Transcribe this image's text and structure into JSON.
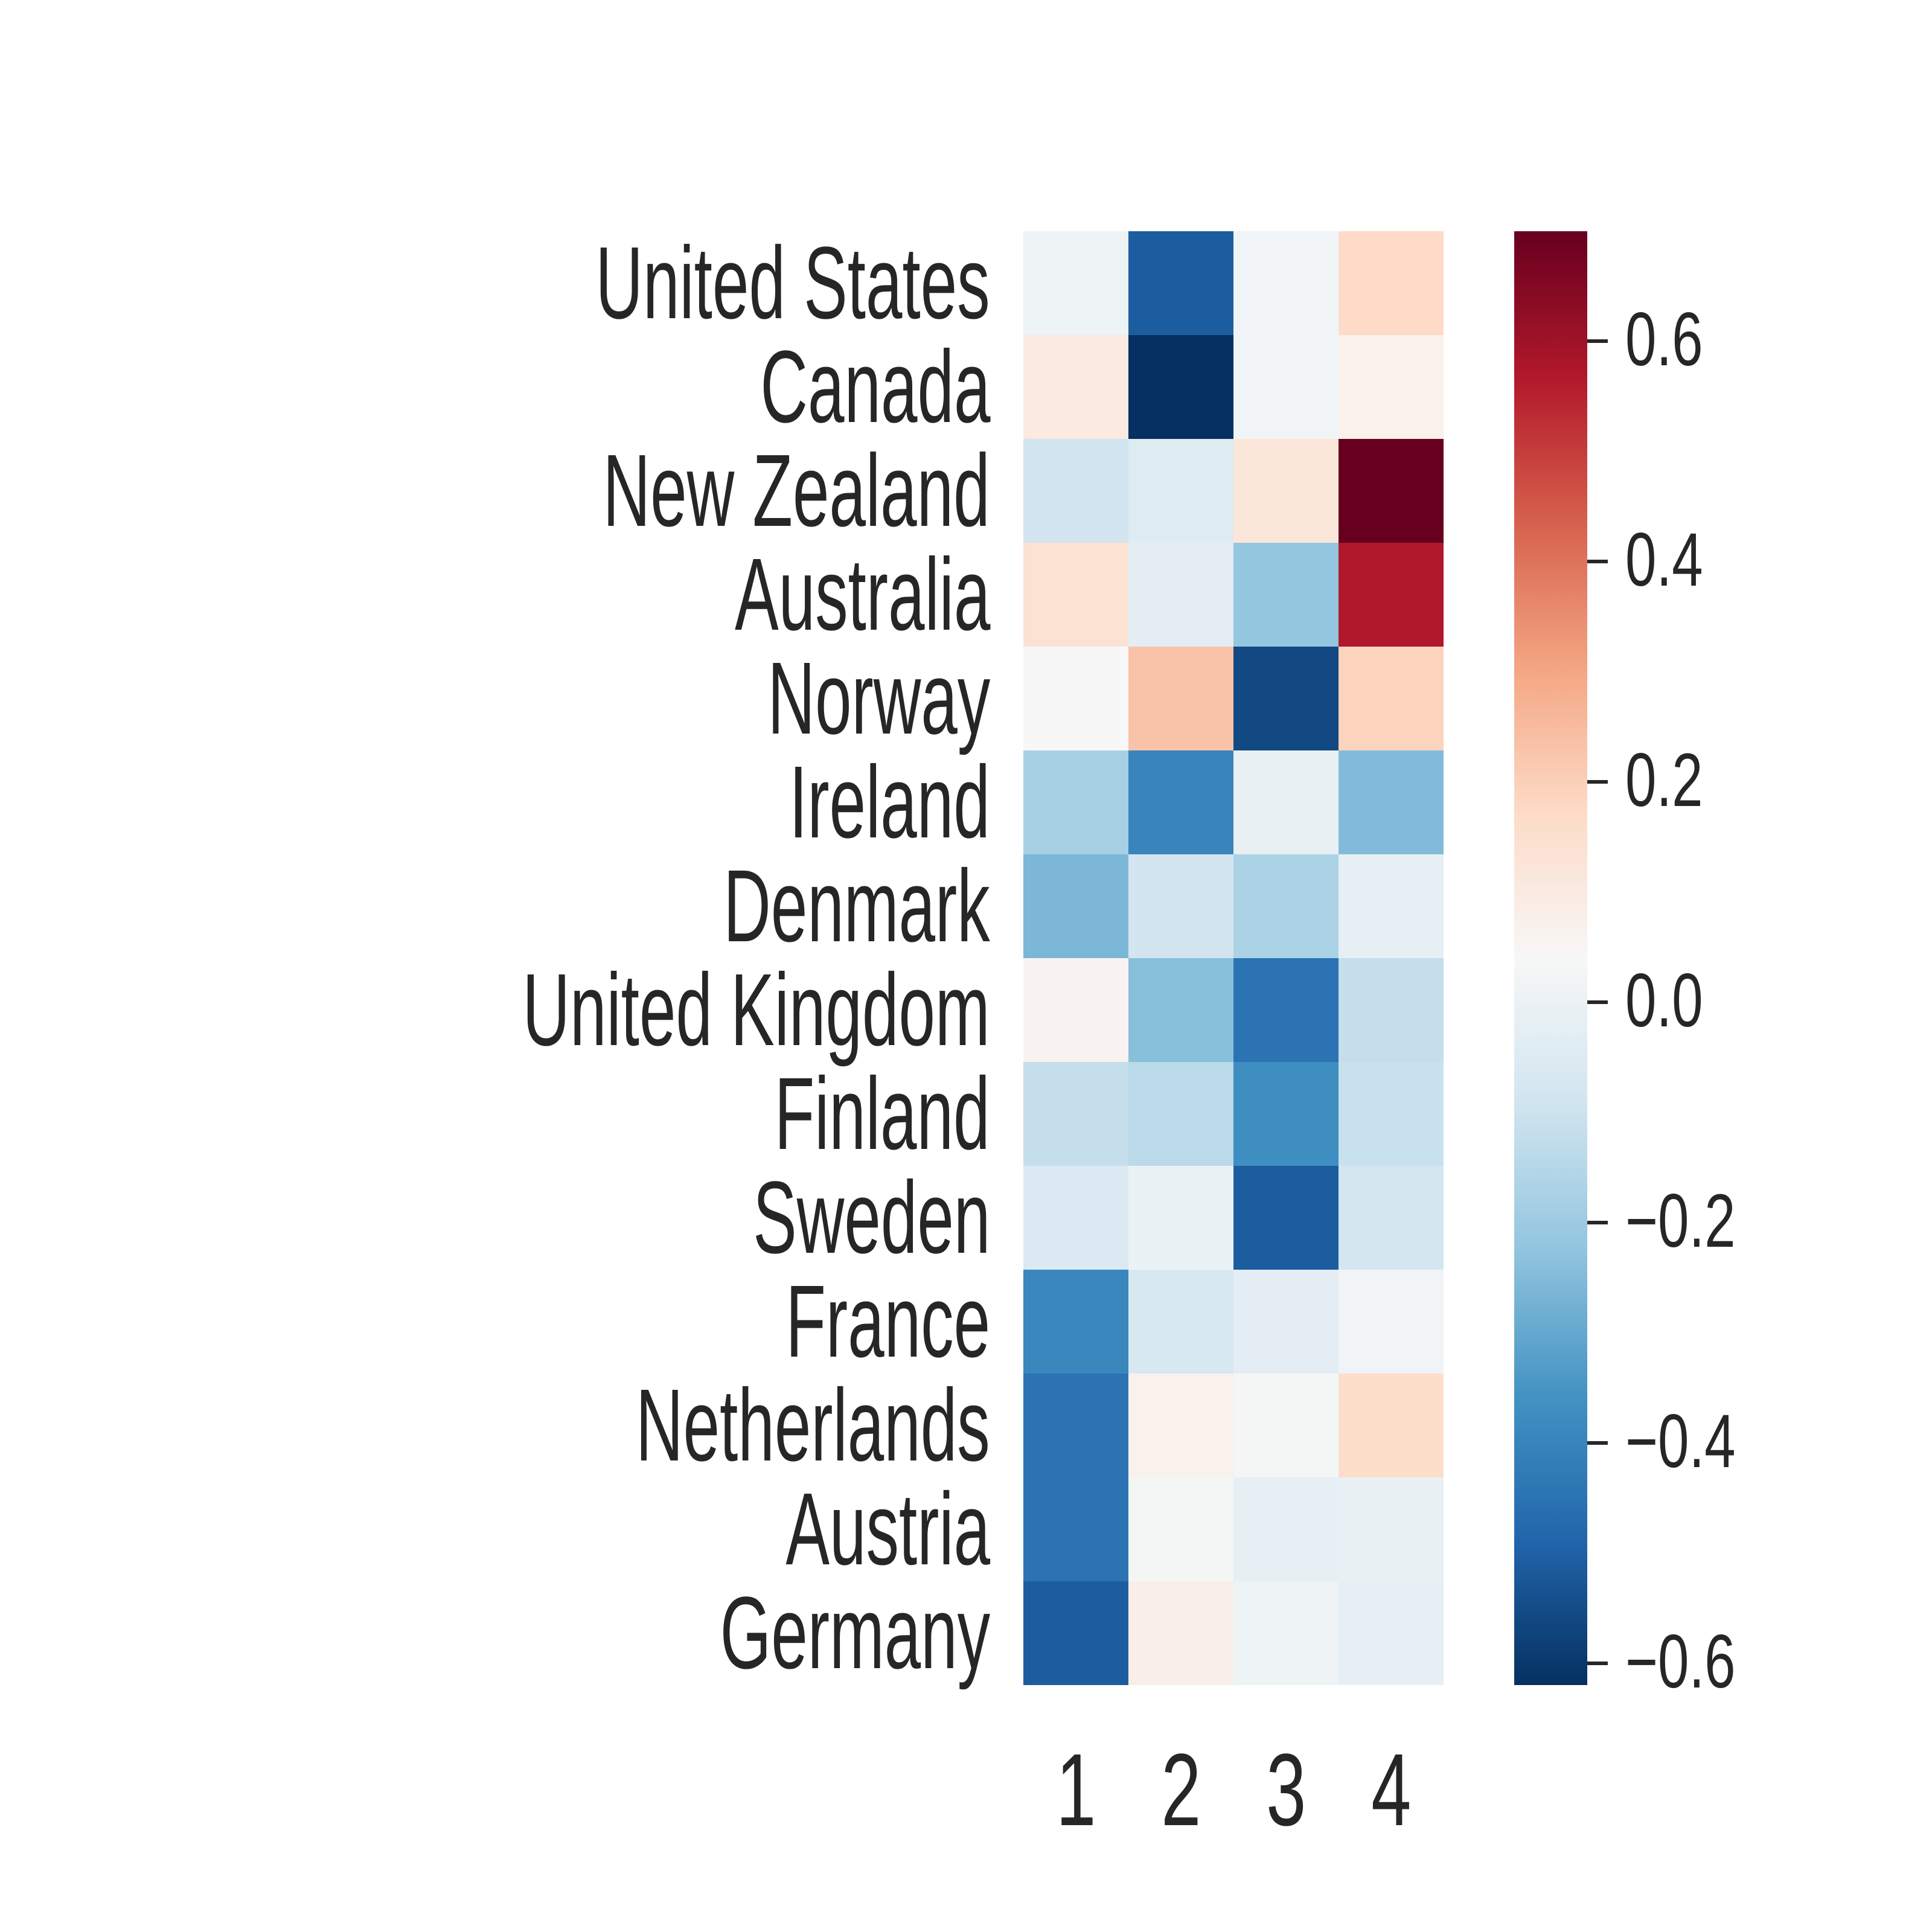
{
  "figure": {
    "background": "#ffffff",
    "text_color": "#262626"
  },
  "chart_data": {
    "type": "heatmap",
    "title": "",
    "xlabel": "",
    "ylabel": "",
    "rows": [
      "United States",
      "Canada",
      "New Zealand",
      "Australia",
      "Norway",
      "Ireland",
      "Denmark",
      "United Kingdom",
      "Finland",
      "Sweden",
      "France",
      "Netherlands",
      "Austria",
      "Germany"
    ],
    "columns": [
      "1",
      "2",
      "3",
      "4"
    ],
    "values": [
      [
        0.01,
        -0.51,
        0.02,
        0.17
      ],
      [
        0.1,
        -0.62,
        0.02,
        0.07
      ],
      [
        -0.09,
        -0.05,
        0.12,
        0.7
      ],
      [
        0.14,
        -0.03,
        -0.22,
        0.57
      ],
      [
        0.04,
        0.23,
        -0.56,
        0.19
      ],
      [
        -0.18,
        -0.4,
        -0.01,
        -0.25
      ],
      [
        -0.26,
        -0.09,
        -0.17,
        -0.02
      ],
      [
        0.06,
        -0.24,
        -0.45,
        -0.12
      ],
      [
        -0.12,
        -0.14,
        -0.37,
        -0.11
      ],
      [
        -0.06,
        0.0,
        -0.51,
        -0.08
      ],
      [
        -0.39,
        -0.07,
        -0.03,
        0.02
      ],
      [
        -0.45,
        0.07,
        0.03,
        0.16
      ],
      [
        -0.45,
        0.03,
        -0.02,
        -0.01
      ],
      [
        -0.51,
        0.08,
        0.01,
        -0.02
      ]
    ],
    "colormap": "RdBu_r",
    "colormap_anchors_low_to_high": [
      "#053061",
      "#2166ac",
      "#4393c3",
      "#92c5de",
      "#d1e5f0",
      "#f7f7f7",
      "#fddbc7",
      "#f4a582",
      "#d6604d",
      "#b2182b",
      "#67001f"
    ],
    "vmin": -0.62,
    "vmax": 0.7,
    "grid": false,
    "legend_position": "none",
    "colorbar": {
      "position": "right",
      "tick_labels": [
        "0.6",
        "0.4",
        "0.2",
        "0.0",
        "−0.2",
        "−0.4",
        "−0.6"
      ],
      "tick_values": [
        0.6,
        0.4,
        0.2,
        0.0,
        -0.2,
        -0.4,
        -0.6
      ]
    }
  }
}
